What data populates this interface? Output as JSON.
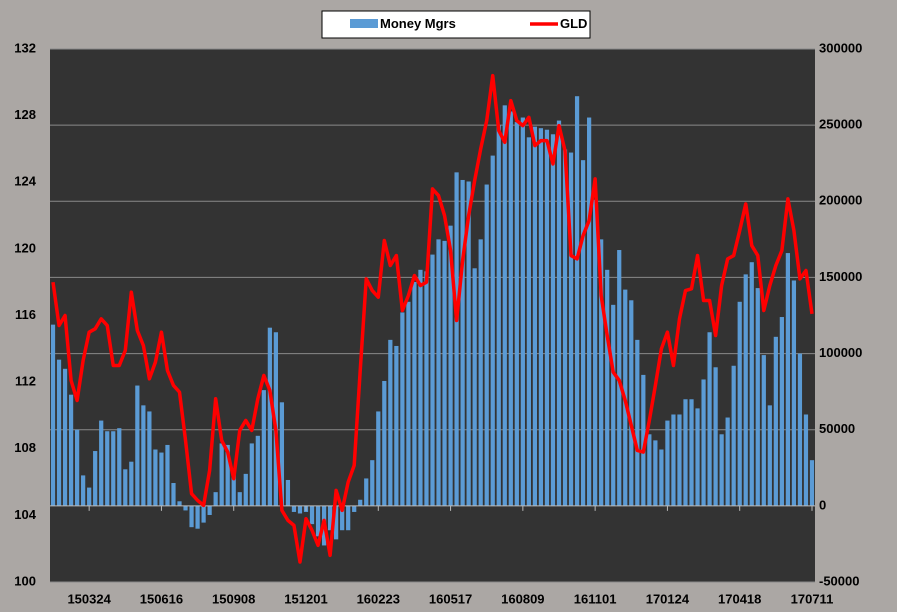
{
  "chart_data": {
    "type": "combo",
    "categories": [
      null,
      null,
      null,
      null,
      null,
      null,
      "150324",
      null,
      null,
      null,
      null,
      null,
      null,
      null,
      null,
      null,
      null,
      null,
      "150616",
      null,
      null,
      null,
      null,
      null,
      null,
      null,
      null,
      null,
      null,
      null,
      "150908",
      null,
      null,
      null,
      null,
      null,
      null,
      null,
      null,
      null,
      null,
      null,
      "151201",
      null,
      null,
      null,
      null,
      null,
      null,
      null,
      null,
      null,
      null,
      null,
      "160223",
      null,
      null,
      null,
      null,
      null,
      null,
      null,
      null,
      null,
      null,
      null,
      "160517",
      null,
      null,
      null,
      null,
      null,
      null,
      null,
      null,
      null,
      null,
      null,
      "160809",
      null,
      null,
      null,
      null,
      null,
      null,
      null,
      null,
      null,
      null,
      null,
      "161101",
      null,
      null,
      null,
      null,
      null,
      null,
      null,
      null,
      null,
      null,
      null,
      "170124",
      null,
      null,
      null,
      null,
      null,
      null,
      null,
      null,
      null,
      null,
      null,
      "170418",
      null,
      null,
      null,
      null,
      null,
      null,
      null,
      null,
      null,
      null,
      null,
      "170711"
    ],
    "series": [
      {
        "name": "Money Mgrs",
        "type": "bar",
        "axis": "y2",
        "color": "#5b9bd5",
        "values": [
          119000,
          96000,
          90000,
          73000,
          50000,
          20000,
          12000,
          36000,
          56000,
          49000,
          49000,
          51000,
          24000,
          29000,
          79000,
          66000,
          62000,
          37000,
          35000,
          40000,
          15000,
          3000,
          -3000,
          -14000,
          -15000,
          -11000,
          -6000,
          9000,
          41000,
          40000,
          24000,
          9000,
          21000,
          41000,
          46000,
          76000,
          117000,
          114000,
          68000,
          17000,
          -4000,
          -5000,
          -4000,
          -12000,
          -20000,
          -26000,
          -16000,
          -22000,
          -16000,
          -16000,
          -4000,
          4000,
          18000,
          30000,
          62000,
          82000,
          109000,
          105000,
          127000,
          134000,
          147000,
          155000,
          154000,
          165000,
          175000,
          174000,
          184000,
          219000,
          214000,
          213000,
          156000,
          175000,
          211000,
          230000,
          250000,
          263000,
          259000,
          252000,
          255000,
          242000,
          249000,
          248000,
          247000,
          244000,
          253000,
          234000,
          232000,
          269000,
          227000,
          255000,
          201000,
          175000,
          155000,
          132000,
          168000,
          142000,
          135000,
          109000,
          86000,
          47000,
          43000,
          37000,
          56000,
          60000,
          60000,
          70000,
          70000,
          64000,
          83000,
          114000,
          91000,
          47000,
          58000,
          92000,
          134000,
          152000,
          160000,
          143000,
          99000,
          66000,
          111000,
          124000,
          166000,
          148000,
          100000,
          60000,
          30000
        ]
      },
      {
        "name": "GLD",
        "type": "line",
        "color": "#ff0000",
        "values": [
          118.0,
          115.4,
          116.0,
          112.1,
          110.9,
          113.3,
          115.0,
          115.2,
          115.8,
          115.4,
          113.0,
          113.0,
          113.9,
          117.4,
          115.1,
          114.2,
          112.2,
          113.2,
          115.0,
          112.7,
          111.8,
          111.4,
          108.5,
          105.3,
          104.9,
          104.6,
          106.7,
          111.0,
          108.5,
          107.8,
          106.2,
          109.1,
          109.7,
          109.1,
          111.0,
          112.4,
          111.5,
          109.1,
          104.3,
          103.7,
          103.4,
          101.2,
          103.8,
          103.1,
          102.2,
          103.7,
          101.6,
          105.5,
          104.3,
          106.0,
          107.0,
          112.7,
          118.2,
          117.5,
          117.1,
          120.5,
          119.0,
          119.6,
          116.3,
          117.2,
          118.4,
          117.8,
          118.0,
          123.6,
          123.2,
          122.0,
          119.9,
          115.7,
          119.3,
          122.0,
          124.1,
          126.0,
          127.7,
          130.4,
          127.1,
          126.4,
          128.9,
          127.7,
          127.4,
          127.9,
          126.2,
          126.5,
          126.5,
          125.1,
          127.4,
          125.9,
          119.6,
          119.4,
          120.8,
          121.7,
          124.2,
          117.2,
          114.8,
          112.6,
          112.1,
          110.9,
          109.4,
          107.9,
          107.8,
          109.7,
          111.8,
          114.0,
          115.0,
          113.0,
          115.8,
          117.5,
          117.6,
          119.6,
          116.9,
          116.9,
          114.8,
          117.8,
          119.4,
          119.6,
          121.1,
          122.7,
          120.2,
          119.6,
          116.3,
          117.8,
          119.0,
          119.9,
          123.0,
          121.1,
          118.2,
          118.7,
          116.1
        ]
      }
    ],
    "ylim": [
      100,
      132
    ],
    "yticks": [
      100,
      104,
      108,
      112,
      116,
      120,
      124,
      128,
      132
    ],
    "y2lim": [
      -50000,
      300000
    ],
    "y2ticks": [
      -50000,
      0,
      50000,
      100000,
      150000,
      200000,
      250000,
      300000
    ],
    "grid": true,
    "legend": "top"
  }
}
